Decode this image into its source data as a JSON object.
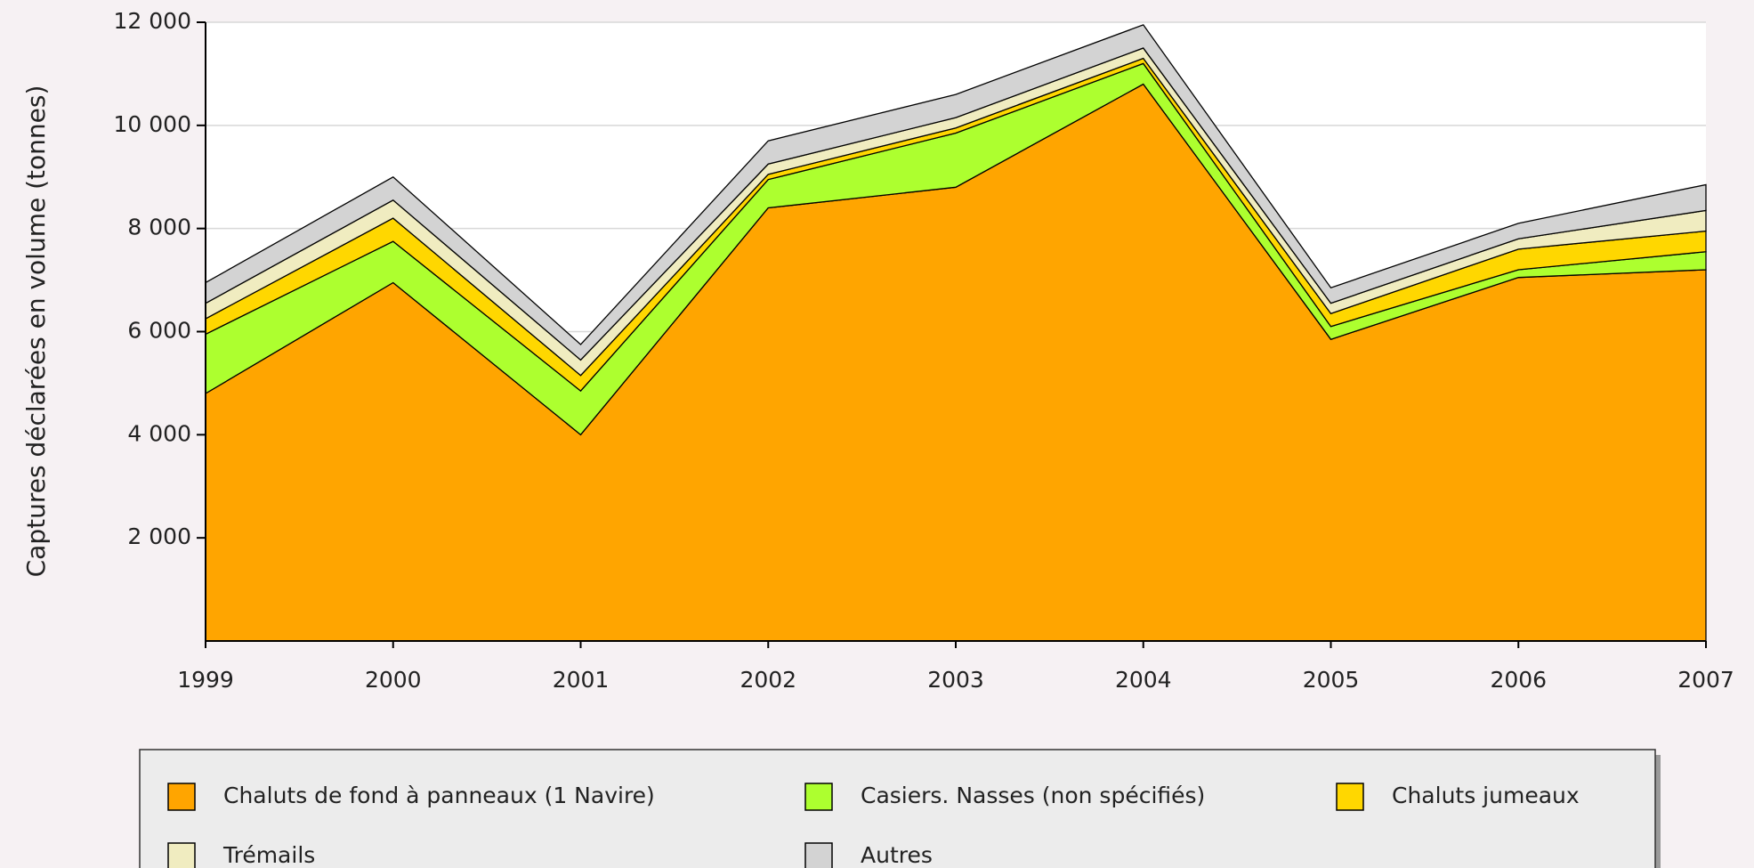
{
  "chart_data": {
    "type": "area",
    "y_label": "Captures déclarées en volume (tonnes)",
    "categories": [
      "1999",
      "2000",
      "2001",
      "2002",
      "2003",
      "2004",
      "2005",
      "2006",
      "2007"
    ],
    "stacked": true,
    "series": [
      {
        "name": "Chaluts de fond à panneaux (1 Navire)",
        "color": "#ffa500",
        "values": [
          4800,
          6950,
          4000,
          8400,
          8800,
          10800,
          5850,
          7050,
          7200
        ]
      },
      {
        "name": "Casiers. Nasses (non spécifiés)",
        "color": "#adff2f",
        "values": [
          1150,
          800,
          850,
          550,
          1050,
          400,
          250,
          150,
          350
        ]
      },
      {
        "name": "Chaluts jumeaux",
        "color": "#ffd700",
        "values": [
          300,
          450,
          300,
          100,
          100,
          100,
          250,
          400,
          400
        ]
      },
      {
        "name": "Trémails",
        "color": "#f0ecc0",
        "values": [
          300,
          350,
          300,
          200,
          200,
          200,
          200,
          200,
          400
        ]
      },
      {
        "name": "Autres",
        "color": "#d3d3d3",
        "values": [
          400,
          450,
          300,
          450,
          450,
          450,
          300,
          300,
          500
        ]
      }
    ],
    "ylim": [
      0,
      12000
    ],
    "yticks": [
      {
        "value": 2000,
        "label": "2 000"
      },
      {
        "value": 4000,
        "label": "4 000"
      },
      {
        "value": 6000,
        "label": "6 000"
      },
      {
        "value": 8000,
        "label": "8 000"
      },
      {
        "value": 10000,
        "label": "10 000"
      },
      {
        "value": 12000,
        "label": "12 000"
      }
    ],
    "grid": true
  }
}
